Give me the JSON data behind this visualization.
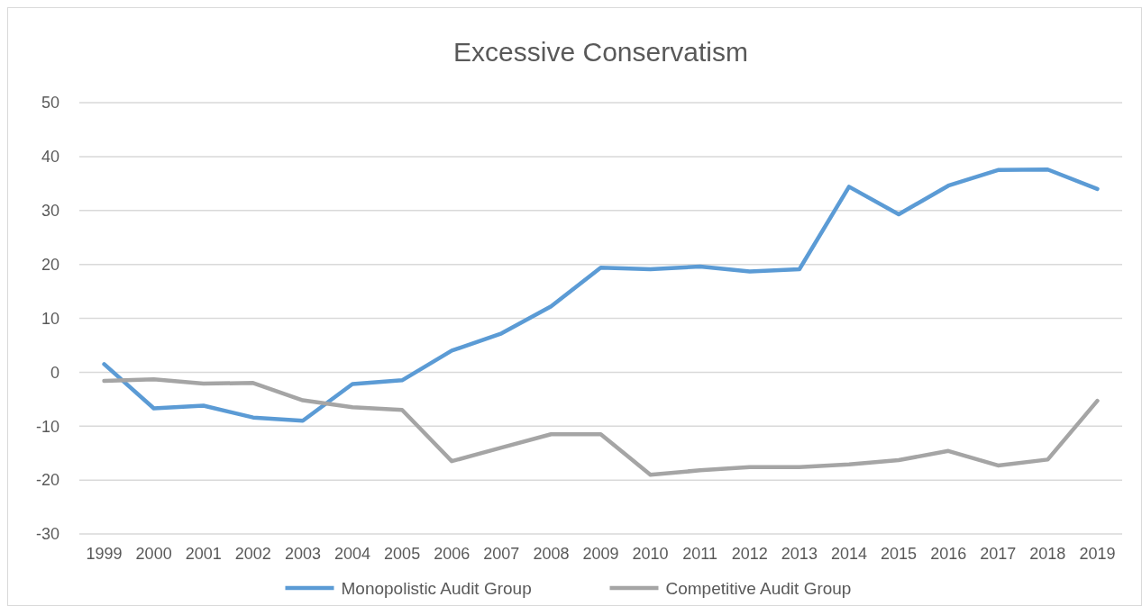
{
  "chart_data": {
    "type": "line",
    "title": "Excessive Conservatism",
    "categories": [
      "1999",
      "2000",
      "2001",
      "2002",
      "2003",
      "2004",
      "2005",
      "2006",
      "2007",
      "2008",
      "2009",
      "2010",
      "2011",
      "2012",
      "2013",
      "2014",
      "2015",
      "2016",
      "2017",
      "2018",
      "2019"
    ],
    "series": [
      {
        "name": "Monopolistic Audit Group",
        "color": "#5b9bd5",
        "values": [
          1.5,
          -6.7,
          -6.2,
          -8.4,
          -9,
          -2.2,
          -1.5,
          4,
          7.2,
          12.2,
          19.4,
          19.1,
          19.6,
          18.7,
          19.1,
          34.4,
          29.3,
          34.6,
          37.5,
          37.6,
          34
        ]
      },
      {
        "name": "Competitive Audit Group",
        "color": "#a5a5a5",
        "values": [
          -1.6,
          -1.3,
          -2.1,
          -2,
          -5.2,
          -6.5,
          -7,
          -16.5,
          -14,
          -11.5,
          -11.5,
          -19,
          -18.2,
          -17.6,
          -17.6,
          -17.1,
          -16.3,
          -14.6,
          -17.3,
          -16.2,
          -5.3
        ]
      }
    ],
    "ylim": [
      -30,
      50
    ],
    "yticks": [
      -30,
      -20,
      -10,
      0,
      10,
      20,
      30,
      40,
      50
    ],
    "grid": "y",
    "legend": "bottom",
    "marker": "none",
    "line_style": "solid"
  }
}
